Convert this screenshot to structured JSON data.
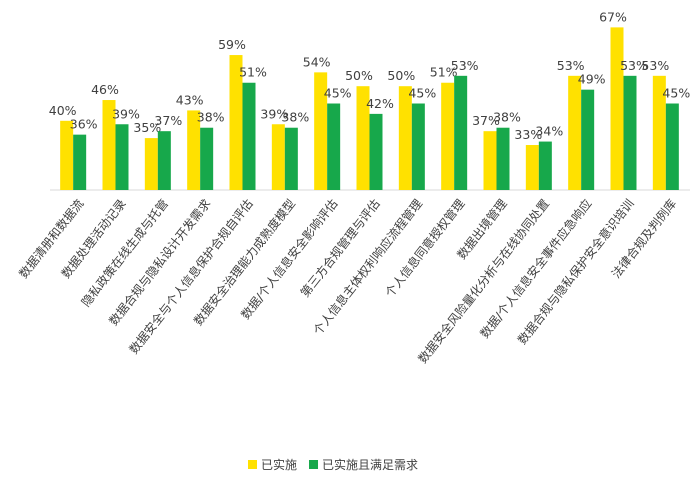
{
  "chart_data": {
    "type": "bar",
    "categories": [
      "数据清册和数据流",
      "数据处理活动记录",
      "隐私政策在线生成与托管",
      "数据合规与隐私设计开发需求",
      "数据安全与个人信息保护合规自评估",
      "数据安全治理能力成熟度模型",
      "数据/个人信息安全影响评估",
      "第三方合规管理与评估",
      "个人信息主体权利响应流程管理",
      "个人信息同意授权管理",
      "数据出境管理",
      "数据安全风险量化分析与在线协同处置",
      "数据/个人信息安全事件应急响应",
      "数据合规与隐私保护安全意识培训",
      "法律合规及判例库"
    ],
    "series": [
      {
        "name": "已实施",
        "color": "#ffe100",
        "values": [
          40,
          46,
          35,
          43,
          59,
          39,
          54,
          50,
          50,
          51,
          37,
          33,
          53,
          67,
          53
        ],
        "value_labels": [
          "40%",
          "46%",
          "35%",
          "43%",
          "59%",
          "39%",
          "54%",
          "50%",
          "50%",
          "51%",
          "37%",
          "33%",
          "53%",
          "67%",
          "53%"
        ]
      },
      {
        "name": "已实施且满足需求",
        "color": "#17a84b",
        "values": [
          36,
          39,
          37,
          38,
          51,
          38,
          45,
          42,
          45,
          53,
          38,
          34,
          49,
          53,
          45
        ],
        "value_labels": [
          "36%",
          "39%",
          "37%",
          "38%",
          "51%",
          "38%",
          "45%",
          "42%",
          "45%",
          "53%",
          "38%",
          "34%",
          "49%",
          "53%",
          "45%"
        ]
      }
    ],
    "ylim": [
      20,
      70
    ]
  }
}
